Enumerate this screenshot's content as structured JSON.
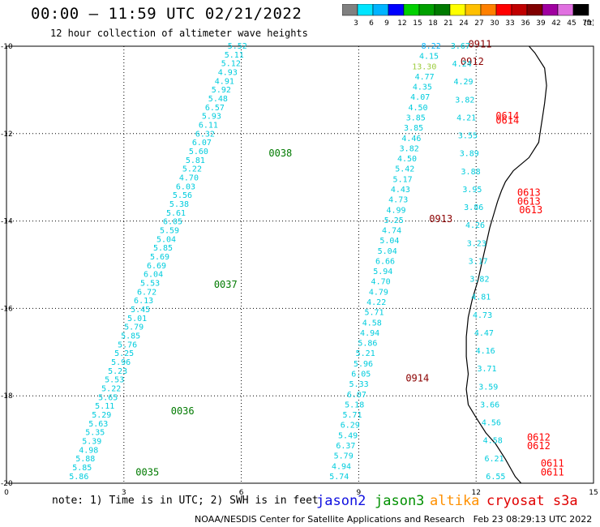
{
  "header": {
    "title": "00:00 – 11:59 UTC 02/21/2022",
    "subtitle": "12 hour collection of altimeter wave heights"
  },
  "legend": {
    "unit_label": "(ft)",
    "bins": [
      {
        "label": "3",
        "color": "#808080"
      },
      {
        "label": "6",
        "color": "#00e5ff"
      },
      {
        "label": "9",
        "color": "#00b4ff"
      },
      {
        "label": "12",
        "color": "#0000ff"
      },
      {
        "label": "15",
        "color": "#00d000"
      },
      {
        "label": "18",
        "color": "#00a000"
      },
      {
        "label": "21",
        "color": "#007a00"
      },
      {
        "label": "24",
        "color": "#ffff00"
      },
      {
        "label": "27",
        "color": "#ffc000"
      },
      {
        "label": "30",
        "color": "#ff8000"
      },
      {
        "label": "33",
        "color": "#ff0000"
      },
      {
        "label": "36",
        "color": "#c00000"
      },
      {
        "label": "39",
        "color": "#800000"
      },
      {
        "label": "42",
        "color": "#a000a0"
      },
      {
        "label": "45",
        "color": "#e070e0"
      },
      {
        "label": "70",
        "color": "#000000"
      }
    ]
  },
  "axes": {
    "x_ticks": [
      "0",
      "3",
      "6",
      "9",
      "12",
      "15"
    ],
    "y_ticks": [
      "-10",
      "-12",
      "-14",
      "-16",
      "-18",
      "-20"
    ]
  },
  "tracks": [
    {
      "satellite": "jason3",
      "color": "#00ccdd",
      "heights": [
        "5.86",
        "5.85",
        "5.88",
        "4.98",
        "5.39",
        "5.35",
        "5.63",
        "5.29",
        "5.11",
        "5.65",
        "5.22",
        "5.53",
        "5.23",
        "5.96",
        "5.25",
        "5.76",
        "5.85",
        "5.79",
        "5.01",
        "5.45",
        "6.13",
        "6.72",
        "5.53",
        "6.04",
        "6.69",
        "5.69",
        "5.85",
        "5.04",
        "5.59",
        "6.05",
        "5.61",
        "5.38",
        "5.56",
        "6.03",
        "4.70",
        "5.22",
        "5.81",
        "5.60",
        "6.07",
        "6.32",
        "6.11",
        "5.93",
        "6.57",
        "5.48",
        "5.92",
        "4.91",
        "4.93",
        "5.12",
        "5.11",
        "5.52"
      ],
      "labels": [
        {
          "text": "0035",
          "color": "#007a00",
          "lon": 3.3,
          "lat": -19.75
        },
        {
          "text": "0036",
          "color": "#007a00",
          "lon": 4.2,
          "lat": -18.35
        },
        {
          "text": "0037",
          "color": "#007a00",
          "lon": 5.3,
          "lat": -15.45
        },
        {
          "text": "0038",
          "color": "#007a00",
          "lon": 6.7,
          "lat": -12.45
        }
      ]
    },
    {
      "satellite": "jason3",
      "color": "#00ccdd",
      "heights": [
        "5.74",
        "4.94",
        "5.79",
        "6.37",
        "5.49",
        "6.29",
        "5.71",
        "5.18",
        "6.07",
        "5.33",
        "6.05",
        "5.96",
        "5.21",
        "5.86",
        "4.94",
        "4.58",
        "5.71",
        "4.22",
        "4.79",
        "4.70",
        "5.94",
        "6.66",
        "5.04",
        "5.04",
        "4.74",
        "5.25",
        "4.99",
        "4.73",
        "4.43",
        "5.17",
        "5.42",
        "4.50",
        "3.82",
        "4.46",
        "3.85",
        "3.85",
        "4.50",
        "4.07",
        "4.35",
        "4.77",
        "13.30",
        "4.15",
        "8.22"
      ],
      "labels": [
        {
          "text": "0911",
          "color": "#8b0000",
          "lon": 11.8,
          "lat": -9.95
        },
        {
          "text": "0912",
          "color": "#8b0000",
          "lon": 11.6,
          "lat": -10.35
        },
        {
          "text": "0913",
          "color": "#8b0000",
          "lon": 10.8,
          "lat": -13.95
        },
        {
          "text": "0914",
          "color": "#8b0000",
          "lon": 10.2,
          "lat": -17.6
        }
      ]
    },
    {
      "satellite": "cryosat",
      "color": "#00ccdd",
      "heights": [
        "6.55",
        "6.21",
        "4.58",
        "4.56",
        "3.66",
        "3.59",
        "3.71",
        "4.16",
        "4.47",
        "4.73",
        "4.81",
        "3.82",
        "3.17",
        "3.23",
        "4.26",
        "3.86",
        "3.95",
        "3.88",
        "3.89",
        "3.55",
        "4.21",
        "3.82",
        "4.29",
        "4.24",
        "3.67"
      ],
      "labels": [
        {
          "text": "0611",
          "color": "#ff0000",
          "lon": 13.65,
          "lat": -19.75
        },
        {
          "text": "0611",
          "color": "#ff0000",
          "lon": 13.65,
          "lat": -19.55
        },
        {
          "text": "0612",
          "color": "#ff0000",
          "lon": 13.3,
          "lat": -19.15
        },
        {
          "text": "0612",
          "color": "#ff0000",
          "lon": 13.3,
          "lat": -18.95
        },
        {
          "text": "0613",
          "color": "#ff0000",
          "lon": 13.1,
          "lat": -13.75
        },
        {
          "text": "0613",
          "color": "#ff0000",
          "lon": 13.05,
          "lat": -13.55
        },
        {
          "text": "0613",
          "color": "#ff0000",
          "lon": 13.05,
          "lat": -13.35
        },
        {
          "text": "0614",
          "color": "#ff0000",
          "lon": 12.5,
          "lat": -11.7
        },
        {
          "text": "0614",
          "color": "#ff0000",
          "lon": 12.5,
          "lat": -11.6
        }
      ]
    }
  ],
  "coastline": [
    [
      13.35,
      -10.0
    ],
    [
      13.5,
      -10.15
    ],
    [
      13.75,
      -10.5
    ],
    [
      13.8,
      -10.9
    ],
    [
      13.75,
      -11.3
    ],
    [
      13.7,
      -11.6
    ],
    [
      13.65,
      -11.9
    ],
    [
      13.6,
      -12.2
    ],
    [
      13.35,
      -12.55
    ],
    [
      12.95,
      -12.85
    ],
    [
      12.75,
      -13.1
    ],
    [
      12.65,
      -13.3
    ],
    [
      12.55,
      -13.55
    ],
    [
      12.45,
      -13.85
    ],
    [
      12.35,
      -14.15
    ],
    [
      12.25,
      -14.55
    ],
    [
      12.15,
      -14.95
    ],
    [
      12.05,
      -15.35
    ],
    [
      11.9,
      -15.8
    ],
    [
      11.8,
      -16.2
    ],
    [
      11.75,
      -16.65
    ],
    [
      11.75,
      -17.1
    ],
    [
      11.8,
      -17.5
    ],
    [
      11.75,
      -17.85
    ],
    [
      11.8,
      -18.2
    ],
    [
      12.0,
      -18.5
    ],
    [
      12.25,
      -18.85
    ],
    [
      12.5,
      -19.1
    ],
    [
      12.75,
      -19.45
    ],
    [
      13.0,
      -19.85
    ],
    [
      13.15,
      -20.0
    ]
  ],
  "footer": {
    "note": "note: 1) Time is in UTC; 2) SWH is in feet",
    "satellites": [
      {
        "name": "jason2",
        "color": "#1010e0"
      },
      {
        "name": "jason3",
        "color": "#009000"
      },
      {
        "name": "altika",
        "color": "#ff9000"
      },
      {
        "name": "cryosat s3a",
        "color": "#e00000"
      }
    ],
    "credit": "NOAA/NESDIS Center for Satellite Applications and Research   Feb 23 08:29:13 UTC 2022"
  }
}
